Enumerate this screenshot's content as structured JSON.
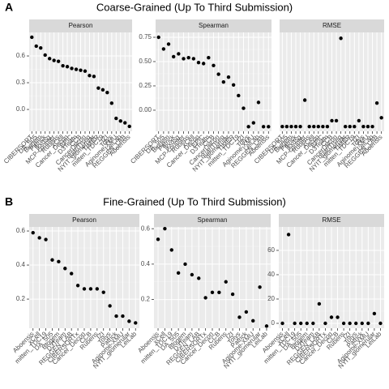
{
  "chart_data": [
    {
      "type": "point",
      "panel_label": "A",
      "title": "Coarse-Grained (Up To Third Submission)",
      "categories": [
        "CIBERSORT",
        "DA_505",
        "Biogem",
        "Patrick",
        "jkxdsg",
        "MCP-counter",
        "Rubens",
        "xCell",
        "Cancer_Decon",
        "EPIC",
        "D3Team",
        "CCB",
        "CancerDecon",
        "quanTIseq",
        "NYIT_glomerular",
        "TIMER",
        "mitten_TDC19",
        "IZI",
        "Tolys",
        "Aginome-XMU",
        "LeiLab",
        "REGGEN_LAB",
        "Aboensis"
      ],
      "facets": [
        {
          "name": "Pearson",
          "values": [
            0.81,
            0.71,
            0.69,
            0.61,
            0.57,
            0.55,
            0.54,
            0.49,
            0.48,
            0.46,
            0.45,
            0.44,
            0.43,
            0.38,
            0.37,
            0.24,
            0.22,
            0.19,
            0.07,
            -0.1,
            -0.13,
            -0.15,
            -0.19
          ],
          "ylim": [
            -0.245,
            0.864
          ],
          "yticks": [
            {
              "value": 0,
              "label": "0.0"
            },
            {
              "value": 0.3,
              "label": "0.3"
            },
            {
              "value": 0.6,
              "label": "0.6"
            }
          ]
        },
        {
          "name": "Spearman",
          "values": [
            0.75,
            0.63,
            0.68,
            0.55,
            0.58,
            0.53,
            0.54,
            0.53,
            0.49,
            0.48,
            0.54,
            0.46,
            0.37,
            0.29,
            0.34,
            0.26,
            0.15,
            0.02,
            -0.17,
            -0.13,
            0.08,
            -0.17,
            -0.17
          ],
          "ylim": [
            -0.217,
            0.8
          ],
          "yticks": [
            {
              "value": 0,
              "label": "0.00"
            },
            {
              "value": 0.25,
              "label": "0.25"
            },
            {
              "value": 0.5,
              "label": "0.50"
            },
            {
              "value": 0.75,
              "label": "0.75"
            }
          ]
        },
        {
          "name": "RMSE",
          "values": [
            0,
            0,
            0,
            0,
            0,
            9,
            0,
            0,
            0,
            0,
            0,
            2,
            2,
            30,
            0,
            0,
            0,
            2,
            0,
            0,
            0,
            8,
            3
          ],
          "ylim": [
            -1.6,
            32
          ],
          "yticks": []
        }
      ]
    },
    {
      "type": "point",
      "panel_label": "B",
      "title": "Fine-Grained (Up To Third Submission)",
      "categories": [
        "Aboensis",
        "xCell",
        "mitten_TDC19",
        "DA_505",
        "Biogem",
        "D3Team",
        "REGGEN_LAB",
        "CIBERSORTx",
        "Cancer_Decon",
        "CCB",
        "Rubens",
        "IZI",
        "Tolys",
        "Patrick",
        "Aginome-XMU",
        "NYIT_glomerular",
        "LeiLab"
      ],
      "facets": [
        {
          "name": "Pearson",
          "values": [
            0.59,
            0.56,
            0.55,
            0.43,
            0.42,
            0.38,
            0.35,
            0.28,
            0.26,
            0.26,
            0.26,
            0.24,
            0.16,
            0.1,
            0.1,
            0.07,
            0.06
          ],
          "ylim": [
            0.029,
            0.624
          ],
          "yticks": [
            0.2,
            0.4,
            0.6
          ]
        },
        {
          "name": "Spearman",
          "values": [
            0.54,
            0.6,
            0.48,
            0.35,
            0.4,
            0.34,
            0.32,
            0.21,
            0.24,
            0.24,
            0.3,
            0.23,
            0.1,
            0.13,
            0.08,
            0.27,
            0.05
          ],
          "ylim": [
            0.038,
            0.61
          ],
          "yticks": [
            0.2,
            0.4,
            0.6
          ]
        },
        {
          "name": "RMSE",
          "values": [
            0,
            73,
            0,
            0,
            0,
            0,
            16,
            0,
            5,
            5,
            0,
            0,
            0,
            0,
            0,
            8,
            0
          ],
          "ylim": [
            -4,
            79.3
          ],
          "yticks": [
            0,
            20,
            40,
            60
          ]
        }
      ]
    }
  ]
}
